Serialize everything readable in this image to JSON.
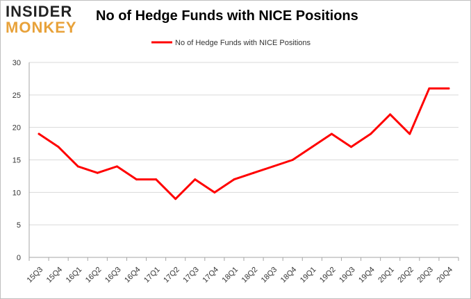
{
  "logo": {
    "line1": "INSIDER",
    "line2": "MONKEY"
  },
  "chart_data": {
    "type": "line",
    "title": "No of Hedge Funds with NICE Positions",
    "xlabel": "",
    "ylabel": "",
    "categories": [
      "15Q3",
      "15Q4",
      "16Q1",
      "16Q2",
      "16Q3",
      "16Q4",
      "17Q1",
      "17Q2",
      "17Q3",
      "17Q4",
      "18Q1",
      "18Q2",
      "18Q3",
      "18Q4",
      "19Q1",
      "19Q2",
      "19Q3",
      "19Q4",
      "20Q1",
      "20Q2",
      "20Q3",
      "20Q4"
    ],
    "series": [
      {
        "name": "No of Hedge Funds with NICE Positions",
        "values": [
          19,
          17,
          14,
          13,
          14,
          12,
          12,
          9,
          12,
          10,
          12,
          13,
          14,
          15,
          17,
          19,
          17,
          19,
          22,
          19,
          26,
          26
        ],
        "color": "#ff0000"
      }
    ],
    "ylim": [
      0,
      30
    ],
    "yticks": [
      0,
      5,
      10,
      15,
      20,
      25,
      30
    ],
    "grid": true,
    "legend": "top-center"
  }
}
